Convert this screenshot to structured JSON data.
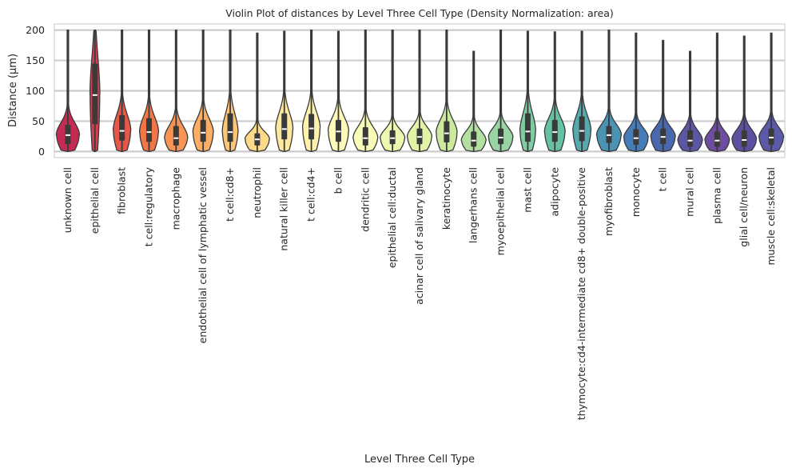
{
  "chart_data": {
    "type": "violin",
    "title": "Violin Plot of distances by Level Three Cell Type (Density Normalization: area)",
    "xlabel": "Level Three Cell Type",
    "ylabel": "Distance (µm)",
    "ylim": [
      -10,
      210
    ],
    "yticks": [
      0,
      50,
      100,
      150,
      200
    ],
    "grid": "horizontal",
    "background": "#ffffff",
    "palette": "Spectral",
    "categories": [
      "unknown cell",
      "epithelial cell",
      "fibroblast",
      "t cell:regulatory",
      "macrophage",
      "endothelial cell of lymphatic vessel",
      "t cell:cd8+",
      "neutrophil",
      "natural killer cell",
      "t cell:cd4+",
      "b cell",
      "dendritic cell",
      "epithelial cell:ductal",
      "acinar cell of salivary gland",
      "keratinocyte",
      "langerhans cell",
      "myoepithelial cell",
      "mast cell",
      "adipocyte",
      "thymocyte:cd4-intermediate cd8+ double-positive",
      "myofibroblast",
      "monocyte",
      "t cell",
      "mural cell",
      "plasma cell",
      "glial cell/neuron",
      "muscle cell:skeletal"
    ],
    "colors": [
      "#c52a52",
      "#d83e4f",
      "#e55749",
      "#f07648",
      "#f79456",
      "#fbae64",
      "#fdc676",
      "#fdda8a",
      "#fee89d",
      "#fff2ab",
      "#fefab8",
      "#f8fcb7",
      "#eff8b0",
      "#e2f3a5",
      "#ccea9e",
      "#b3e0a2",
      "#99d5a4",
      "#80cba4",
      "#68c0a5",
      "#56a9ad",
      "#4b93b3",
      "#467db8",
      "#4a68ae",
      "#5b56a5",
      "#6e4da0",
      "#5e4fa2",
      "#5a5aa8"
    ],
    "series": [
      {
        "medians": [
          27,
          93,
          34,
          32,
          22,
          31,
          32,
          20,
          37,
          38,
          33,
          22,
          22,
          24,
          30,
          18,
          23,
          33,
          32,
          34,
          27,
          22,
          24,
          18,
          18,
          19,
          23
        ],
        "q1": [
          12,
          45,
          18,
          16,
          10,
          16,
          16,
          10,
          20,
          20,
          16,
          10,
          12,
          12,
          15,
          8,
          12,
          16,
          16,
          17,
          14,
          11,
          12,
          8,
          8,
          8,
          11
        ],
        "q3": [
          44,
          145,
          60,
          55,
          42,
          52,
          63,
          30,
          63,
          62,
          52,
          40,
          35,
          38,
          50,
          33,
          38,
          63,
          52,
          58,
          42,
          37,
          38,
          35,
          33,
          35,
          38
        ],
        "max": [
          200,
          200,
          200,
          200,
          200,
          200,
          200,
          195,
          198,
          200,
          198,
          200,
          200,
          200,
          200,
          165,
          200,
          198,
          197,
          198,
          200,
          195,
          183,
          165,
          195,
          190,
          195
        ]
      }
    ]
  }
}
